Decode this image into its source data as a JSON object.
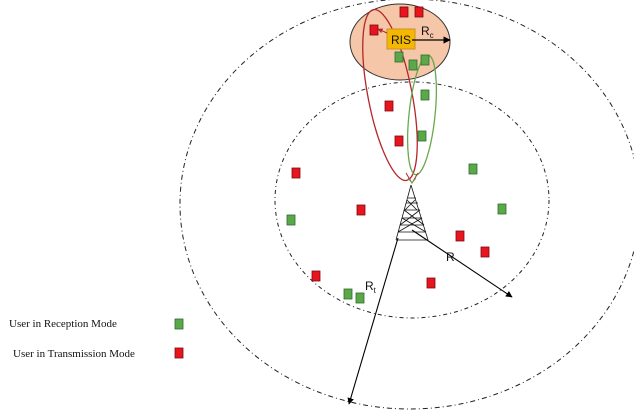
{
  "ris_label": "RIS",
  "radius_labels": {
    "rc_main": "R",
    "rc_sub": "c",
    "r": "R",
    "rt_main": "R",
    "rt_sub": "t"
  },
  "legend": [
    {
      "text": "User in Reception Mode",
      "color": "#5aa84a"
    },
    {
      "text": "User in Transmission Mode",
      "color": "#e8141e"
    }
  ],
  "colors": {
    "reception": "#5aa84a",
    "transmission": "#e8141e",
    "cluster_fill": "#f6c6a8",
    "ris_fill": "#f5b800",
    "beam_red": "#b3262b",
    "beam_green": "#6aa84f"
  }
}
